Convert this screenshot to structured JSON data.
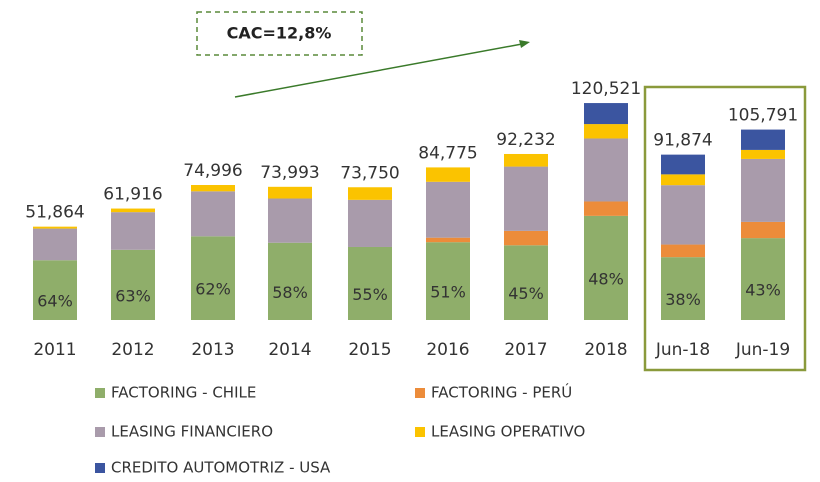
{
  "chart_data": {
    "type": "stacked_bar",
    "annotation": "CAC=12,8%",
    "categories": [
      "2011",
      "2012",
      "2013",
      "2014",
      "2015",
      "2016",
      "2017",
      "2018",
      "Jun-18",
      "Jun-19"
    ],
    "series": [
      {
        "name": "FACTORING - CHILE",
        "color": "#8fae6a",
        "values": [
          33193,
          39007,
          46498,
          42916,
          40563,
          43235,
          41504,
          57850,
          34912,
          45490
        ],
        "value_labels": [
          "64%",
          "63%",
          "62%",
          "58%",
          "55%",
          "51%",
          "45%",
          "48%",
          "38%",
          "43%"
        ]
      },
      {
        "name": "FACTORING - PERÚ",
        "color": "#ec8c3a",
        "values": [
          0,
          0,
          0,
          0,
          0,
          2500,
          8000,
          8000,
          7000,
          9000
        ]
      },
      {
        "name": "LEASING FINANCIERO",
        "color": "#a99bab",
        "values": [
          17600,
          20909,
          24998,
          24577,
          26187,
          31040,
          35728,
          35000,
          33000,
          35000
        ]
      },
      {
        "name": "LEASING OPERATIVO",
        "color": "#fbc300",
        "values": [
          1071,
          2000,
          3500,
          6500,
          7000,
          8000,
          7000,
          8000,
          6000,
          5000
        ]
      },
      {
        "name": "CREDITO AUTOMOTRIZ - USA",
        "color": "#3b55a0",
        "values": [
          0,
          0,
          0,
          0,
          0,
          0,
          0,
          11671,
          10962,
          11301
        ]
      }
    ],
    "total_labels": [
      "51,864",
      "61,916",
      "74,996",
      "73,993",
      "73,750",
      "84,775",
      "92,232",
      "120,521",
      "91,874",
      "105,791"
    ],
    "ylim": [
      0,
      130000
    ]
  }
}
